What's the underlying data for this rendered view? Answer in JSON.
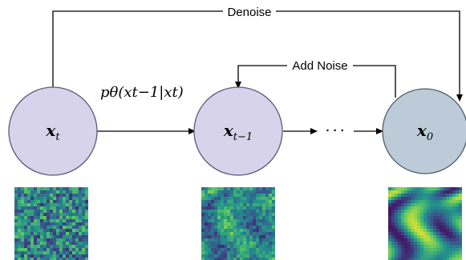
{
  "edges": {
    "denoise_label": "Denoise",
    "add_noise_label": "Add Noise",
    "transition_label": "pθ(xt−1|xt)",
    "ellipsis": "· · ·"
  },
  "nodes": [
    {
      "id": "x_t",
      "symbol": "x",
      "subscript": "t",
      "fill": "#d6d3ea"
    },
    {
      "id": "x_t_minus_1",
      "symbol": "x",
      "subscript": "t−1",
      "fill": "#d6d3ea"
    },
    {
      "id": "x_0",
      "symbol": "x",
      "subscript": "0",
      "fill": "#bccbd7"
    }
  ],
  "colors": {
    "node_stroke": "#5c5a78",
    "x0_stroke": "#4e5f6b",
    "arrow": "#000000"
  },
  "images": [
    {
      "name": "pure-noise-thumbnail",
      "noise_level": 1.0
    },
    {
      "name": "partial-noise-thumbnail",
      "noise_level": 0.55
    },
    {
      "name": "clean-sample-thumbnail",
      "noise_level": 0.05
    }
  ]
}
